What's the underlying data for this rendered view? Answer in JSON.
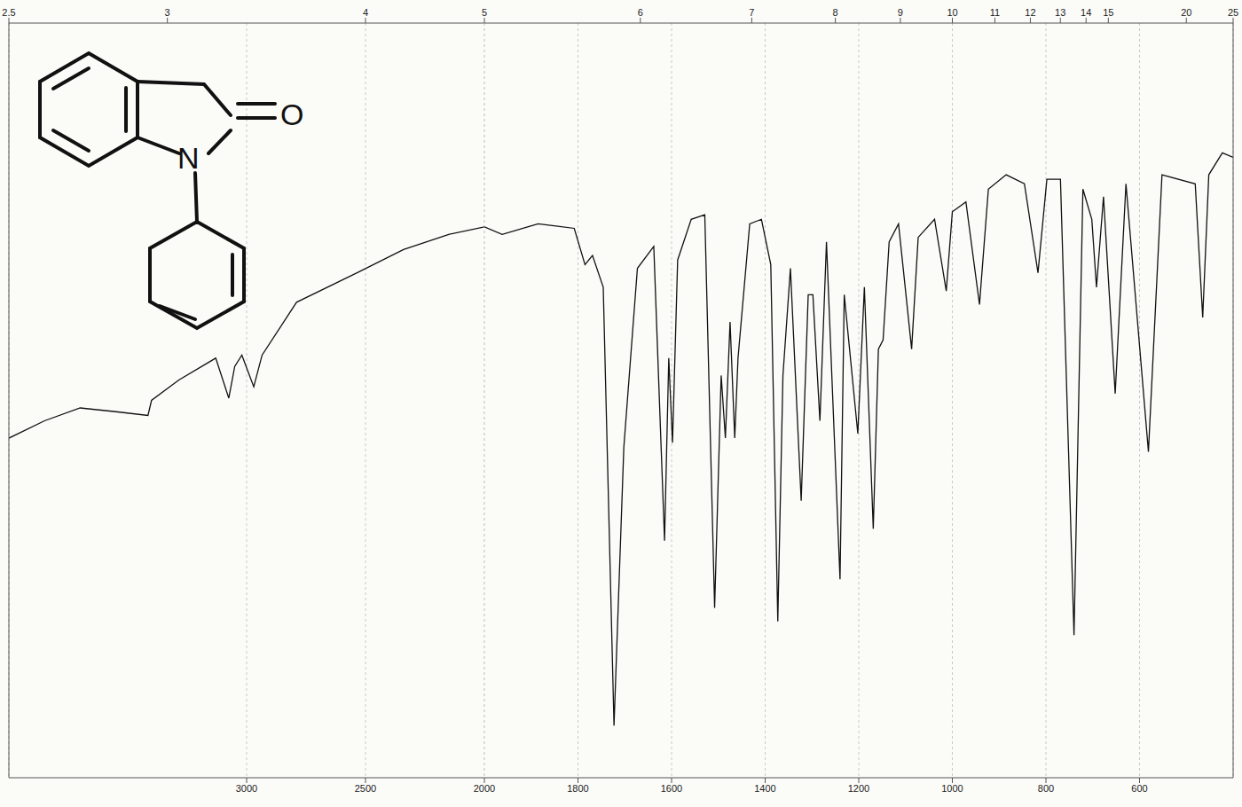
{
  "chart_data": [
    {
      "type": "line",
      "grid": true,
      "tick_labels": "x",
      "color": "#111111",
      "line_style": "solid",
      "marker": "none",
      "annotations": [
        "N",
        "O"
      ],
      "xlim": [
        4000,
        2000
      ],
      "ylim": [
        0,
        100
      ],
      "xticks": [
        3000,
        2500
      ],
      "x2ticks": [
        {
          "value": 4000,
          "label": "2.5"
        },
        {
          "value": 3333.3,
          "label": "3"
        },
        {
          "value": 2500,
          "label": "4"
        }
      ],
      "x": [
        4000,
        3850,
        3700,
        3550,
        3415,
        3400,
        3285,
        3130,
        3075,
        3050,
        3020,
        2970,
        2935,
        2790,
        2530,
        2340,
        2150,
        2000
      ],
      "values": [
        45,
        47.3,
        49,
        48.5,
        48,
        50,
        52.7,
        55.6,
        50.3,
        54.5,
        56,
        51.8,
        56,
        63,
        67,
        70,
        72,
        73
      ]
    },
    {
      "type": "line",
      "grid": true,
      "tick_labels": "x",
      "color": "#111111",
      "line_style": "solid",
      "marker": "none",
      "xlim": [
        2000,
        400
      ],
      "ylim": [
        0,
        100
      ],
      "xticks": [
        2000,
        1800,
        1600,
        1400,
        1200,
        1000,
        800,
        600
      ],
      "x2ticks": [
        {
          "value": 2000,
          "label": "5"
        },
        {
          "value": 1666.7,
          "label": "6"
        },
        {
          "value": 1428.6,
          "label": "7"
        },
        {
          "value": 1250,
          "label": "8"
        },
        {
          "value": 1111.1,
          "label": "9"
        },
        {
          "value": 1000,
          "label": "10"
        },
        {
          "value": 909.1,
          "label": "11"
        },
        {
          "value": 833.3,
          "label": "12"
        },
        {
          "value": 769.2,
          "label": "13"
        },
        {
          "value": 714.3,
          "label": "14"
        },
        {
          "value": 666.7,
          "label": "15"
        },
        {
          "value": 500,
          "label": "20"
        },
        {
          "value": 400,
          "label": "25"
        }
      ],
      "x": [
        2000,
        1962,
        1885,
        1808,
        1785,
        1769,
        1746,
        1723,
        1702,
        1673,
        1638,
        1615,
        1606,
        1598,
        1587,
        1558,
        1529,
        1508,
        1494,
        1485,
        1475,
        1465,
        1458,
        1433,
        1408,
        1388,
        1373,
        1362,
        1346,
        1323,
        1308,
        1298,
        1283,
        1269,
        1240,
        1231,
        1202,
        1188,
        1169,
        1158,
        1148,
        1135,
        1115,
        1087,
        1073,
        1038,
        1013,
        1000,
        971,
        942,
        923,
        885,
        846,
        817,
        798,
        769,
        740,
        721,
        702,
        692,
        677,
        652,
        629,
        581,
        552,
        481,
        465,
        452,
        423,
        400
      ],
      "values": [
        73,
        72,
        73.4,
        72.8,
        68,
        69.2,
        65,
        6.9,
        43.8,
        67.5,
        70.4,
        31.4,
        55.6,
        44.4,
        68.6,
        74,
        74.6,
        22.5,
        53.3,
        45,
        60.4,
        45,
        55.6,
        73.4,
        74,
        68,
        20.7,
        53.3,
        67.5,
        36.7,
        64,
        64,
        47.3,
        71,
        26.3,
        64,
        45.6,
        65,
        33,
        56.8,
        58,
        71,
        73.4,
        56.8,
        71.6,
        74,
        64.5,
        75,
        76.3,
        62.7,
        78,
        79.9,
        78.7,
        66.9,
        79.3,
        79.3,
        18.9,
        78,
        74,
        65,
        77,
        50.9,
        78.7,
        43.2,
        79.9,
        78.7,
        61,
        79.9,
        82.8,
        82.2
      ]
    }
  ]
}
